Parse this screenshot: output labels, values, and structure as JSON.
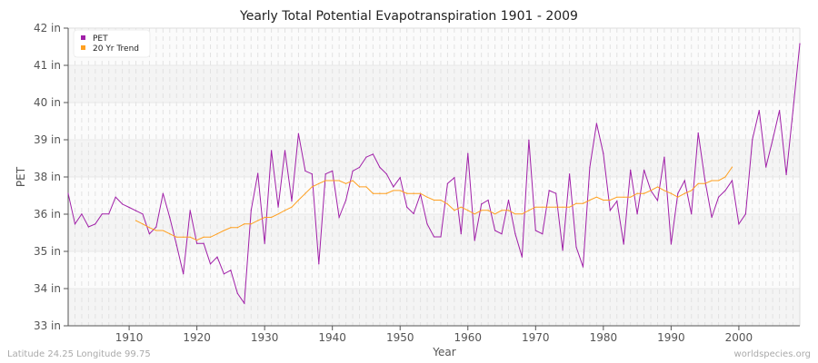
{
  "chart_data": {
    "type": "line",
    "title": "Yearly Total Potential Evapotranspiration 1901 - 2009",
    "xlabel": "Year",
    "ylabel": "PET",
    "xlim": [
      1901,
      2009
    ],
    "ylim": [
      33,
      42
    ],
    "y_ticks": [
      33,
      34.125,
      35.25,
      36.375,
      37.5,
      38.625,
      39.75,
      40.875,
      42
    ],
    "y_tick_labels": [
      "33 in",
      "34 in",
      "35 in",
      "36 in",
      "38 in",
      "39 in",
      "40 in",
      "41 in",
      "42 in"
    ],
    "x_ticks": [
      1910,
      1920,
      1930,
      1940,
      1950,
      1960,
      1970,
      1980,
      1990,
      2000
    ],
    "x_tick_labels": [
      "1910",
      "1920",
      "1930",
      "1940",
      "1950",
      "1960",
      "1970",
      "1980",
      "1990",
      "2000"
    ],
    "grid": true,
    "legend_position": "top-left",
    "series": [
      {
        "name": "PET",
        "color": "#a020a8",
        "x_start": 1901,
        "values": [
          37.0,
          36.08,
          36.38,
          35.99,
          36.08,
          36.38,
          36.38,
          36.89,
          36.68,
          36.58,
          36.48,
          36.38,
          35.78,
          35.99,
          37.0,
          36.27,
          35.44,
          34.57,
          36.49,
          35.49,
          35.49,
          34.87,
          35.08,
          34.57,
          34.68,
          33.98,
          33.68,
          36.49,
          37.61,
          35.49,
          38.3,
          36.59,
          38.3,
          36.77,
          38.81,
          37.68,
          37.59,
          34.87,
          37.59,
          37.68,
          36.28,
          36.8,
          37.68,
          37.79,
          38.1,
          38.19,
          37.79,
          37.59,
          37.2,
          37.48,
          36.59,
          36.39,
          36.98,
          36.08,
          35.69,
          35.69,
          37.3,
          37.48,
          35.78,
          38.21,
          35.58,
          36.68,
          36.8,
          35.88,
          35.78,
          36.8,
          35.78,
          35.08,
          38.62,
          35.88,
          35.78,
          37.09,
          37.0,
          35.28,
          37.59,
          35.38,
          34.78,
          37.79,
          39.12,
          38.21,
          36.49,
          36.77,
          35.47,
          37.71,
          36.38,
          37.71,
          37.09,
          36.79,
          38.1,
          35.47,
          37.0,
          37.39,
          36.38,
          38.83,
          37.41,
          36.28,
          36.89,
          37.09,
          37.39,
          36.08,
          36.38,
          38.63,
          39.51,
          37.8,
          38.63,
          39.51,
          37.57,
          39.51,
          41.53
        ]
      },
      {
        "name": "20 Yr Trend",
        "color": "#ffa020",
        "x_start": 1911,
        "values": [
          36.18,
          36.08,
          35.97,
          35.88,
          35.88,
          35.78,
          35.68,
          35.68,
          35.68,
          35.59,
          35.68,
          35.68,
          35.78,
          35.88,
          35.97,
          35.97,
          36.08,
          36.08,
          36.18,
          36.28,
          36.28,
          36.38,
          36.49,
          36.59,
          36.8,
          37.0,
          37.2,
          37.3,
          37.39,
          37.39,
          37.39,
          37.3,
          37.39,
          37.2,
          37.2,
          37.0,
          37.0,
          37.0,
          37.09,
          37.09,
          37.0,
          37.0,
          37.0,
          36.89,
          36.8,
          36.8,
          36.68,
          36.49,
          36.59,
          36.49,
          36.38,
          36.49,
          36.49,
          36.38,
          36.49,
          36.49,
          36.38,
          36.38,
          36.49,
          36.59,
          36.59,
          36.59,
          36.59,
          36.59,
          36.59,
          36.7,
          36.7,
          36.8,
          36.89,
          36.8,
          36.8,
          36.89,
          36.89,
          36.89,
          37.0,
          37.0,
          37.09,
          37.2,
          37.09,
          37.0,
          36.89,
          37.0,
          37.09,
          37.3,
          37.3,
          37.39,
          37.39,
          37.5,
          37.8
        ]
      }
    ]
  },
  "footer": {
    "location": "Latitude 24.25 Longitude 99.75",
    "source": "worldspecies.org"
  }
}
